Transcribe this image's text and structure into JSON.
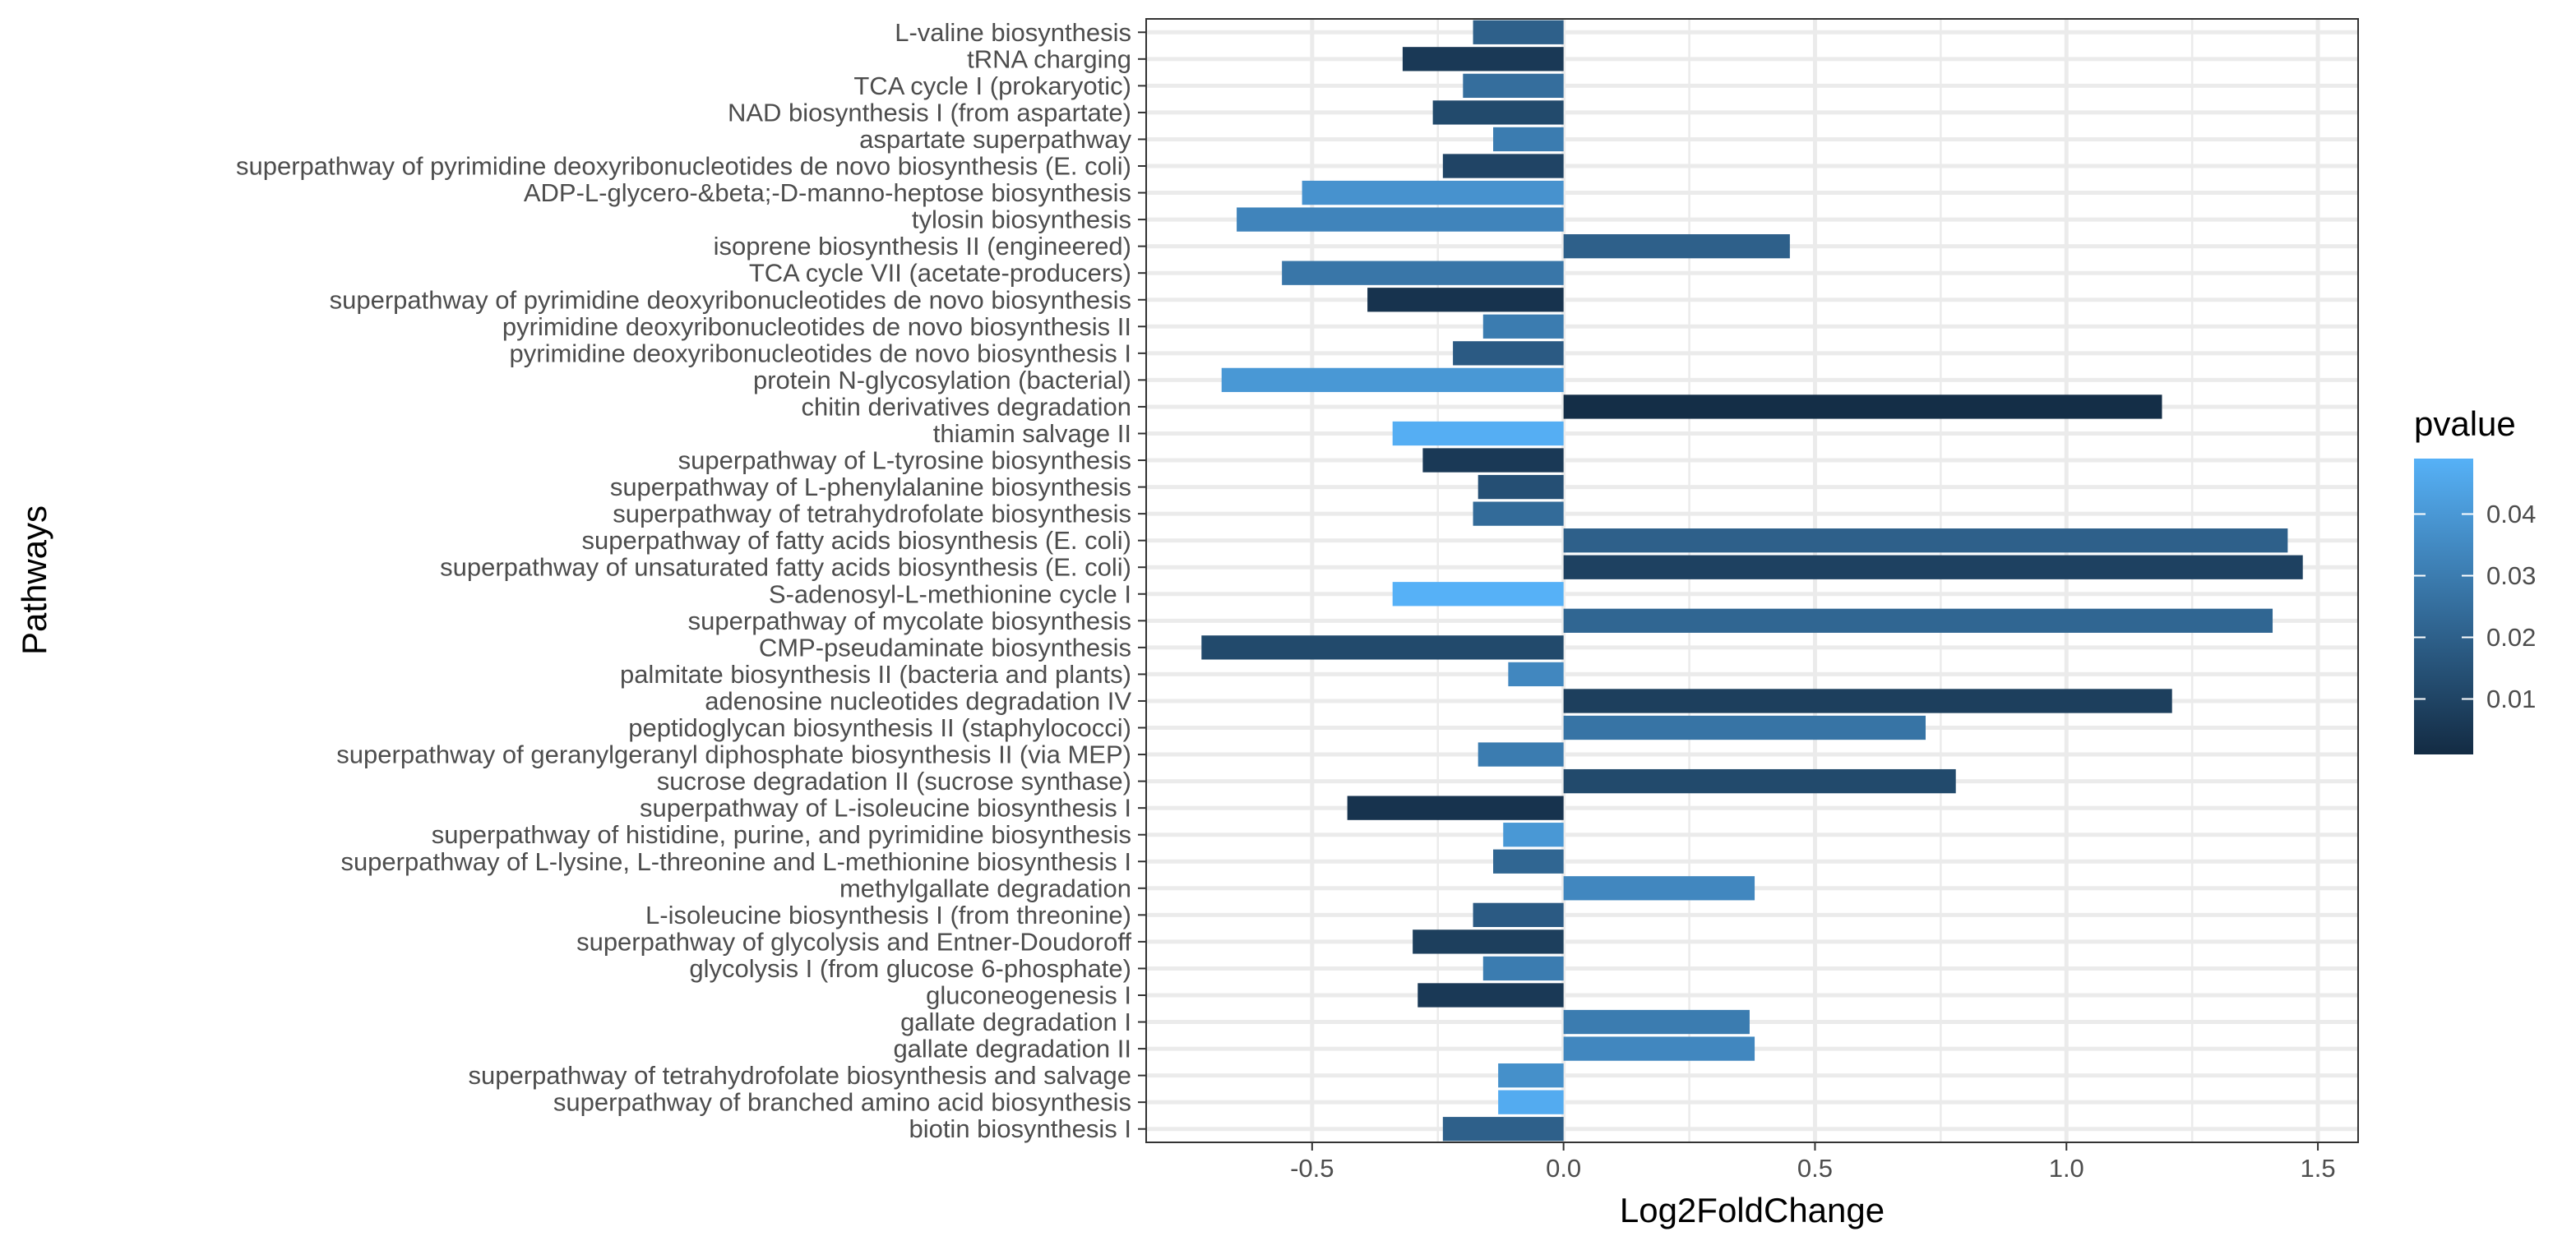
{
  "chart_data": {
    "type": "bar",
    "orientation": "horizontal",
    "title": "",
    "xlabel": "Log2FoldChange",
    "ylabel": "Pathways",
    "xlim": [
      -0.83,
      1.58
    ],
    "xticks": [
      -0.5,
      0.0,
      0.5,
      1.0,
      1.5
    ],
    "xtick_labels": [
      "-0.5",
      "0.0",
      "0.5",
      "1.0",
      "1.5"
    ],
    "grid": true,
    "categories": [
      "L-valine biosynthesis",
      "tRNA charging",
      "TCA cycle I (prokaryotic)",
      "NAD biosynthesis I (from aspartate)",
      "aspartate superpathway",
      "superpathway of pyrimidine deoxyribonucleotides de novo biosynthesis (E. coli)",
      "ADP-L-glycero-&beta;-D-manno-heptose biosynthesis",
      "tylosin biosynthesis",
      "isoprene biosynthesis II (engineered)",
      "TCA cycle VII (acetate-producers)",
      "superpathway of pyrimidine deoxyribonucleotides de novo biosynthesis",
      "pyrimidine deoxyribonucleotides de novo biosynthesis II",
      "pyrimidine deoxyribonucleotides de novo biosynthesis I",
      "protein N-glycosylation (bacterial)",
      "chitin derivatives degradation",
      "thiamin salvage II",
      "superpathway of L-tyrosine biosynthesis",
      "superpathway of L-phenylalanine biosynthesis",
      "superpathway of tetrahydrofolate biosynthesis",
      "superpathway of fatty acids biosynthesis (E. coli)",
      "superpathway of unsaturated fatty acids biosynthesis (E. coli)",
      "S-adenosyl-L-methionine cycle I",
      "superpathway of mycolate biosynthesis",
      "CMP-pseudaminate biosynthesis",
      "palmitate biosynthesis II (bacteria and plants)",
      "adenosine nucleotides degradation IV",
      "peptidoglycan biosynthesis II (staphylococci)",
      "superpathway of geranylgeranyl diphosphate biosynthesis II (via MEP)",
      "sucrose degradation II (sucrose synthase)",
      "superpathway of L-isoleucine biosynthesis I",
      "superpathway of histidine, purine, and pyrimidine biosynthesis",
      "superpathway of L-lysine, L-threonine and L-methionine biosynthesis I",
      "methylgallate degradation",
      "L-isoleucine biosynthesis I (from threonine)",
      "superpathway of glycolysis and Entner-Doudoroff",
      "glycolysis I (from glucose 6-phosphate)",
      "gluconeogenesis I",
      "gallate degradation I",
      "gallate degradation II",
      "superpathway of tetrahydrofolate biosynthesis and salvage",
      "superpathway of branched amino acid biosynthesis",
      "biotin biosynthesis I"
    ],
    "values": [
      -0.18,
      -0.32,
      -0.2,
      -0.26,
      -0.14,
      -0.24,
      -0.52,
      -0.65,
      0.45,
      -0.56,
      -0.39,
      -0.16,
      -0.22,
      -0.68,
      1.19,
      -0.34,
      -0.28,
      -0.17,
      -0.18,
      1.44,
      1.47,
      -0.34,
      1.41,
      -0.72,
      -0.11,
      1.21,
      0.72,
      -0.17,
      0.78,
      -0.43,
      -0.12,
      -0.14,
      0.38,
      -0.18,
      -0.3,
      -0.16,
      -0.29,
      0.37,
      0.38,
      -0.13,
      -0.13,
      -0.24
    ],
    "pvalue": [
      0.02,
      0.006,
      0.025,
      0.012,
      0.03,
      0.01,
      0.038,
      0.033,
      0.02,
      0.028,
      0.004,
      0.03,
      0.018,
      0.04,
      0.002,
      0.048,
      0.006,
      0.014,
      0.024,
      0.02,
      0.009,
      0.05,
      0.022,
      0.012,
      0.034,
      0.008,
      0.027,
      0.03,
      0.012,
      0.004,
      0.04,
      0.022,
      0.034,
      0.018,
      0.008,
      0.03,
      0.006,
      0.03,
      0.034,
      0.037,
      0.047,
      0.02
    ],
    "legend": {
      "title": "pvalue",
      "position": "right",
      "ticks": [
        0.01,
        0.02,
        0.03,
        0.04
      ],
      "tick_labels": [
        "0.01",
        "0.02",
        "0.03",
        "0.04"
      ],
      "range": [
        0.001,
        0.049
      ],
      "color_low": "#132B43",
      "color_high": "#56B1F7"
    }
  }
}
